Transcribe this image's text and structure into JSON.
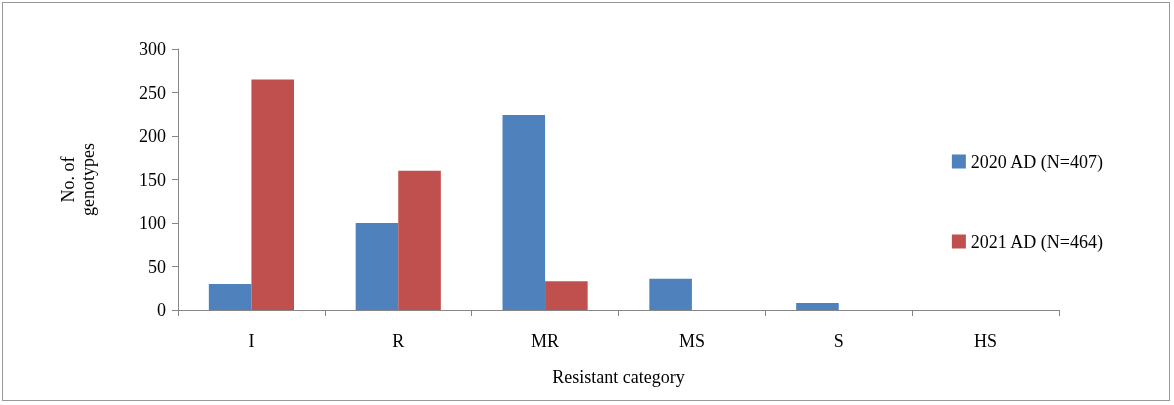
{
  "chart_data": {
    "type": "bar",
    "xlabel": "Resistant category",
    "ylabel": "No. of\ngenotypes",
    "categories": [
      "I",
      "R",
      "MR",
      "MS",
      "S",
      "HS"
    ],
    "series": [
      {
        "name": "2020 AD (N=407)",
        "color": "#4f81bd",
        "values": [
          30,
          100,
          224,
          36,
          8,
          0
        ]
      },
      {
        "name": "2021 AD (N=464)",
        "color": "#c0504d",
        "values": [
          265,
          160,
          33,
          0,
          0,
          0
        ]
      }
    ],
    "ylim": [
      0,
      300
    ],
    "yticks": [
      0,
      50,
      100,
      150,
      200,
      250,
      300
    ],
    "grid": false,
    "legend": "right"
  }
}
